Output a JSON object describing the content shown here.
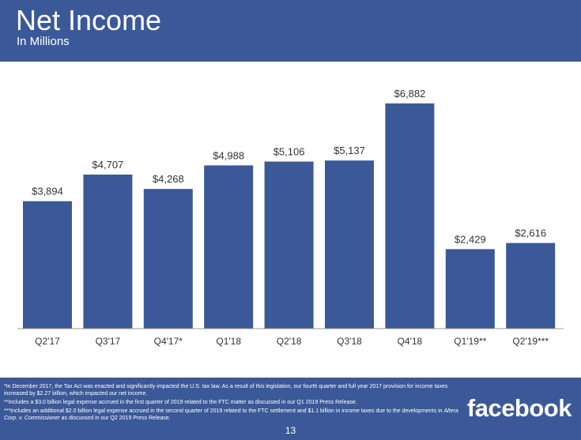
{
  "header": {
    "title": "Net Income",
    "subtitle": "In Millions"
  },
  "colors": {
    "brand_blue": "#3b5998",
    "bar": "#3b5998",
    "axis": "#999999",
    "text": "#333333"
  },
  "chart_data": {
    "type": "bar",
    "title": "Net Income",
    "subtitle": "In Millions",
    "categories": [
      "Q2'17",
      "Q3'17",
      "Q4'17*",
      "Q1'18",
      "Q2'18",
      "Q3'18",
      "Q4'18",
      "Q1'19**",
      "Q2'19***"
    ],
    "values": [
      3894,
      4707,
      4268,
      4988,
      5106,
      5137,
      6882,
      2429,
      2616
    ],
    "value_labels": [
      "$3,894",
      "$4,707",
      "$4,268",
      "$4,988",
      "$5,106",
      "$5,137",
      "$6,882",
      "$2,429",
      "$2,616"
    ],
    "xlabel": "",
    "ylabel": "",
    "ylim": [
      0,
      7000
    ],
    "grid": false,
    "legend": "none"
  },
  "footer": {
    "footnote_1": "*In December 2017, the Tax Act was enacted and significantly impacted the U.S. tax law. As a result of this legislation, our fourth quarter and full year 2017 provision for income taxes increased by $2.27 billion, which impacted our net income.",
    "footnote_2": "**Includes a $3.0 billion legal expense accrued in the first quarter of 2019 related to the FTC matter as discussed in our Q1 2019 Press Release.",
    "footnote_3_part1": "***Includes an additional $2.0 billion legal expense accrued in the second quarter of 2019 related to the FTC settlement and $1.1 billion in income taxes due to the developments in ",
    "footnote_3_case": "Altera Corp. v. Commissioner",
    "footnote_3_part2": " as discussed in our Q2 2019 Press Release.",
    "brand": "facebook",
    "page_number": "13"
  }
}
